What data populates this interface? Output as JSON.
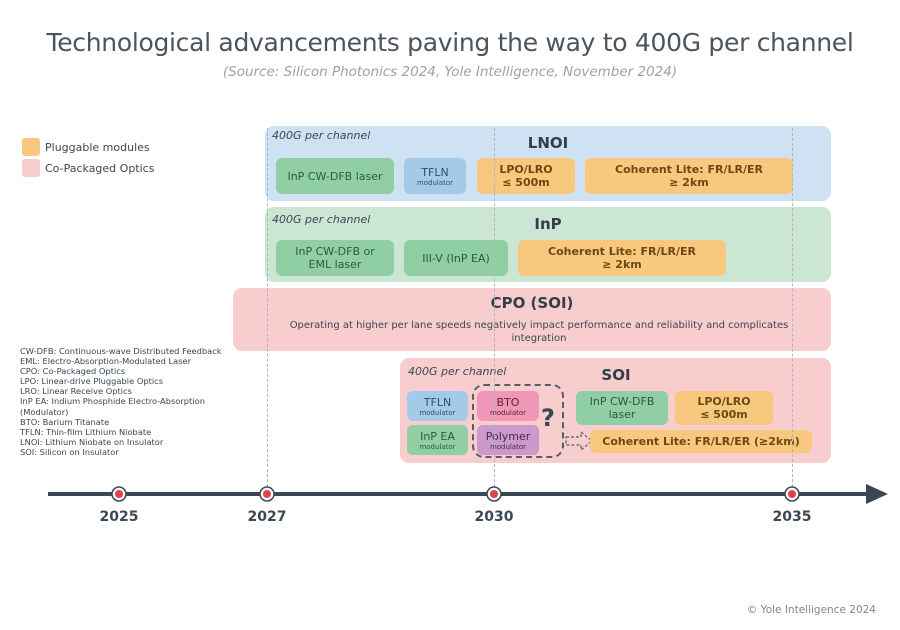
{
  "title": "Technological advancements paving the way to 400G per channel",
  "subtitle": "(Source: Silicon Photonics 2024, Yole Intelligence, November 2024)",
  "legend": [
    {
      "label": "Pluggable modules",
      "color": "#f9c87f"
    },
    {
      "label": "Co-Packaged Optics",
      "color": "#f8cdcd"
    }
  ],
  "abbreviations": [
    "CW-DFB: Continuous-wave Distributed Feedback",
    "EML: Electro-Absorption-Modulated Laser",
    "CPO: Co-Packaged Optics",
    "LPO: Linear-drive Pluggable Optics",
    "LRO: Linear Receive Optics",
    "InP EA: Indium Phosphide Electro-Absorption",
    "(Modulator)",
    "BTO: Barium Titanate",
    "TFLN: Thin-film Lithium Niobate",
    "LNOI: Lithium Niobate on Insulator",
    "SOI: Silicon on Insulator"
  ],
  "lnoi": {
    "label": "400G per channel",
    "title": "LNOI",
    "laser": "InP CW-DFB laser",
    "tfln": "TFLN",
    "tfln_sub": "modulator",
    "lpo": "LPO/LRO",
    "lpo_range": "≤ 500m",
    "coherent": "Coherent Lite: FR/LR/ER",
    "coherent_range": "≥ 2km"
  },
  "inp": {
    "label": "400G per channel",
    "title": "InP",
    "laser_l1": "InP CW-DFB or",
    "laser_l2": "EML laser",
    "iiiv": "III-V (InP EA)",
    "coherent": "Coherent Lite: FR/LR/ER",
    "coherent_range": "≥ 2km"
  },
  "cpo": {
    "title": "CPO (SOI)",
    "text_l1": "Operating at higher per lane speeds negatively impact performance and reliability and complicates",
    "text_l2": "integration"
  },
  "soi": {
    "label": "400G per channel",
    "title": "SOI",
    "tfln": "TFLN",
    "tfln_sub": "modulator",
    "inp_ea": "InP EA",
    "inp_ea_sub": "modulator",
    "bto": "BTO",
    "bto_sub": "modulator",
    "polymer": "Polymer",
    "polymer_sub": "modulator",
    "question": "?",
    "laser_l1": "InP CW-DFB",
    "laser_l2": "laser",
    "lpo": "LPO/LRO",
    "lpo_range": "≤ 500m",
    "coherent": "Coherent Lite: FR/LR/ER (≥2km)"
  },
  "timeline": {
    "years": [
      "2025",
      "2027",
      "2030",
      "2035"
    ]
  },
  "copyright": "© Yole Intelligence 2024"
}
